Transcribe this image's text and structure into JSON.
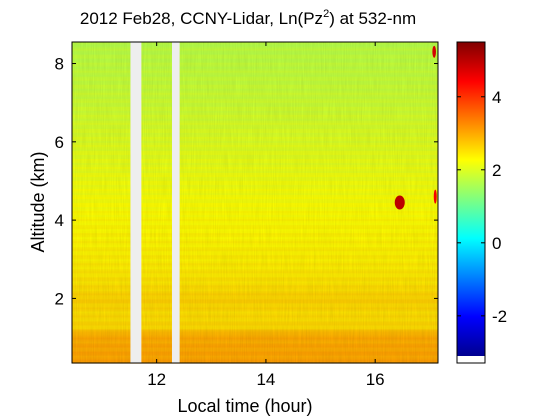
{
  "chart_data": {
    "type": "heatmap",
    "title": {
      "prefix": "2012 Feb28, CCNY-Lidar, Ln(Pz",
      "superscript": "2",
      "suffix": ") at 532-nm"
    },
    "xlabel": "Local time (hour)",
    "ylabel": "Altitude (km)",
    "xlim": [
      10.45,
      17.15
    ],
    "ylim": [
      0.35,
      8.55
    ],
    "x_ticks": [
      12,
      14,
      16
    ],
    "y_ticks": [
      2,
      4,
      6,
      8
    ],
    "colorbar": {
      "range": [
        -3.1,
        5.5
      ],
      "ticks": [
        -2,
        0,
        2,
        4
      ],
      "colormap": "jet"
    },
    "data_gaps": [
      {
        "start": 11.52,
        "end": 11.72
      },
      {
        "start": 12.28,
        "end": 12.42
      }
    ],
    "value_profile": [
      {
        "altitude_km": 0.35,
        "value": 3.05
      },
      {
        "altitude_km": 0.8,
        "value": 3.0
      },
      {
        "altitude_km": 1.1,
        "value": 2.95
      },
      {
        "altitude_km": 1.25,
        "value": 2.6
      },
      {
        "altitude_km": 1.6,
        "value": 2.55
      },
      {
        "altitude_km": 2.0,
        "value": 2.65
      },
      {
        "altitude_km": 2.4,
        "value": 2.5
      },
      {
        "altitude_km": 3.0,
        "value": 2.4
      },
      {
        "altitude_km": 4.0,
        "value": 2.3
      },
      {
        "altitude_km": 5.0,
        "value": 2.15
      },
      {
        "altitude_km": 6.0,
        "value": 2.0
      },
      {
        "altitude_km": 7.0,
        "value": 1.85
      },
      {
        "altitude_km": 8.0,
        "value": 1.75
      },
      {
        "altitude_km": 8.55,
        "value": 1.7
      }
    ],
    "features": [
      {
        "name": "cloud-patch",
        "time": 16.45,
        "altitude_km": 4.45,
        "value": 5.0
      },
      {
        "name": "cloud-edge",
        "time": 17.1,
        "altitude_km": 4.6,
        "value": 4.5
      },
      {
        "name": "high-spot",
        "time": 17.08,
        "altitude_km": 8.3,
        "value": 4.8
      }
    ],
    "grid": false
  }
}
